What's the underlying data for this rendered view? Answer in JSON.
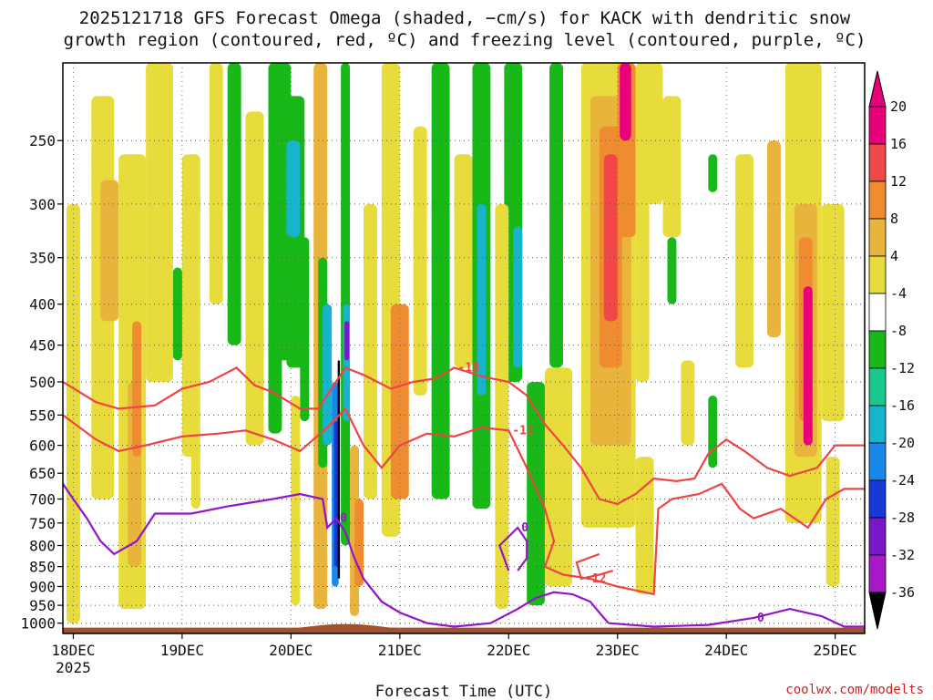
{
  "chart_data": {
    "type": "heatmap",
    "title_lines": [
      "2025121718 GFS Forecast Omega (shaded, −cm/s) for KACK with dendritic snow",
      "growth region (contoured, red, ºC) and freezing level (contoured, purple, ºC)"
    ],
    "xlabel": "Forecast Time (UTC)",
    "x_ticks": [
      "18DEC",
      "19DEC",
      "20DEC",
      "21DEC",
      "22DEC",
      "23DEC",
      "24DEC",
      "25DEC"
    ],
    "x_year_label": "2025",
    "x_range_hours": [
      -2.3,
      174.5
    ],
    "y_ticks": [
      250,
      300,
      350,
      400,
      450,
      500,
      550,
      600,
      650,
      700,
      750,
      800,
      850,
      900,
      950,
      1000
    ],
    "y_scale": "log",
    "y_range": [
      200,
      1030
    ],
    "grid": true,
    "colorbar": {
      "labels": [
        "20",
        "16",
        "12",
        "8",
        "4",
        "-4",
        "-8",
        "-12",
        "-16",
        "-20",
        "-24",
        "-28",
        "-32",
        "-36"
      ],
      "colors": [
        "#e8007a",
        "#f04848",
        "#f08c30",
        "#e8b43c",
        "#e8dc3c",
        "#ffffff",
        "#18b818",
        "#18c88c",
        "#18b4cc",
        "#1888e8",
        "#1838d8",
        "#7818c8",
        "#a818c8",
        "#a0a0a0"
      ],
      "top_cap_color": "#e8007a",
      "bottom_cap_color": "#000000"
    },
    "omega_colors": {
      "y4": "#e8dc3c",
      "y8": "#e8b43c",
      "o12": "#f08c30",
      "r16": "#f04848",
      "m20": "#e8007a",
      "g4": "#18b818",
      "g8": "#18c88c",
      "c12": "#18b4cc",
      "b16": "#1888e8",
      "b20": "#1838d8",
      "p24": "#7818c8",
      "bk": "#000000"
    },
    "omega_streaks": [
      {
        "t": [
          -1.5,
          1.5
        ],
        "p": [
          300,
          1000
        ],
        "c": "y4"
      },
      {
        "t": [
          4,
          9
        ],
        "p": [
          220,
          700
        ],
        "c": "y4"
      },
      {
        "t": [
          6,
          10
        ],
        "p": [
          280,
          420
        ],
        "c": "y8"
      },
      {
        "t": [
          10,
          16
        ],
        "p": [
          260,
          960
        ],
        "c": "y4"
      },
      {
        "t": [
          12,
          15
        ],
        "p": [
          500,
          850
        ],
        "c": "y8"
      },
      {
        "t": [
          13,
          15
        ],
        "p": [
          420,
          620
        ],
        "c": "o12"
      },
      {
        "t": [
          16,
          22
        ],
        "p": [
          200,
          500
        ],
        "c": "y4"
      },
      {
        "t": [
          24,
          28
        ],
        "p": [
          260,
          620
        ],
        "c": "y4"
      },
      {
        "t": [
          26,
          28
        ],
        "p": [
          600,
          720
        ],
        "c": "y4"
      },
      {
        "t": [
          22,
          24
        ],
        "p": [
          360,
          470
        ],
        "c": "g4"
      },
      {
        "t": [
          30,
          33
        ],
        "p": [
          200,
          400
        ],
        "c": "y4"
      },
      {
        "t": [
          34,
          37
        ],
        "p": [
          200,
          450
        ],
        "c": "g4"
      },
      {
        "t": [
          38,
          42
        ],
        "p": [
          230,
          600
        ],
        "c": "y4"
      },
      {
        "t": [
          43,
          48
        ],
        "p": [
          200,
          470
        ],
        "c": "g4"
      },
      {
        "t": [
          43,
          46
        ],
        "p": [
          420,
          580
        ],
        "c": "g4"
      },
      {
        "t": [
          47,
          51
        ],
        "p": [
          220,
          480
        ],
        "c": "g4"
      },
      {
        "t": [
          47,
          50
        ],
        "p": [
          250,
          330
        ],
        "c": "c12"
      },
      {
        "t": [
          50,
          52
        ],
        "p": [
          330,
          560
        ],
        "c": "g4"
      },
      {
        "t": [
          48,
          50
        ],
        "p": [
          520,
          950
        ],
        "c": "y4"
      },
      {
        "t": [
          53,
          56
        ],
        "p": [
          200,
          960
        ],
        "c": "y8"
      },
      {
        "t": [
          54,
          56
        ],
        "p": [
          350,
          640
        ],
        "c": "g4"
      },
      {
        "t": [
          55,
          57
        ],
        "p": [
          400,
          600
        ],
        "c": "c12"
      },
      {
        "t": [
          57,
          58.5
        ],
        "p": [
          500,
          900
        ],
        "c": "b16"
      },
      {
        "t": [
          57.5,
          58.5
        ],
        "p": [
          560,
          850
        ],
        "c": "b20"
      },
      {
        "t": [
          58.3,
          58.8
        ],
        "p": [
          470,
          880
        ],
        "c": "bk"
      },
      {
        "t": [
          59,
          61
        ],
        "p": [
          200,
          800
        ],
        "c": "g4"
      },
      {
        "t": [
          59.5,
          61
        ],
        "p": [
          400,
          560
        ],
        "c": "c12"
      },
      {
        "t": [
          59.8,
          60.8
        ],
        "p": [
          420,
          470
        ],
        "c": "p24"
      },
      {
        "t": [
          61,
          63
        ],
        "p": [
          600,
          980
        ],
        "c": "y8"
      },
      {
        "t": [
          62,
          64
        ],
        "p": [
          700,
          900
        ],
        "c": "o12"
      },
      {
        "t": [
          64,
          67
        ],
        "p": [
          300,
          700
        ],
        "c": "y4"
      },
      {
        "t": [
          68,
          72
        ],
        "p": [
          200,
          780
        ],
        "c": "y4"
      },
      {
        "t": [
          70,
          74
        ],
        "p": [
          400,
          700
        ],
        "c": "o12"
      },
      {
        "t": [
          75,
          78
        ],
        "p": [
          240,
          520
        ],
        "c": "y4"
      },
      {
        "t": [
          79,
          83
        ],
        "p": [
          200,
          700
        ],
        "c": "g4"
      },
      {
        "t": [
          84,
          88
        ],
        "p": [
          260,
          480
        ],
        "c": "y4"
      },
      {
        "t": [
          88,
          92
        ],
        "p": [
          200,
          720
        ],
        "c": "g4"
      },
      {
        "t": [
          89,
          91
        ],
        "p": [
          300,
          520
        ],
        "c": "c12"
      },
      {
        "t": [
          95,
          99
        ],
        "p": [
          200,
          500
        ],
        "c": "g4"
      },
      {
        "t": [
          97,
          99
        ],
        "p": [
          320,
          480
        ],
        "c": "c12"
      },
      {
        "t": [
          93,
          96
        ],
        "p": [
          300,
          960
        ],
        "c": "y4"
      },
      {
        "t": [
          100,
          104
        ],
        "p": [
          500,
          950
        ],
        "c": "g4"
      },
      {
        "t": [
          105,
          108
        ],
        "p": [
          200,
          480
        ],
        "c": "g4"
      },
      {
        "t": [
          104,
          110
        ],
        "p": [
          480,
          900
        ],
        "c": "y4"
      },
      {
        "t": [
          112,
          124
        ],
        "p": [
          200,
          760
        ],
        "c": "y4"
      },
      {
        "t": [
          114,
          123
        ],
        "p": [
          220,
          600
        ],
        "c": "y8"
      },
      {
        "t": [
          116,
          121
        ],
        "p": [
          240,
          480
        ],
        "c": "o12"
      },
      {
        "t": [
          117,
          120
        ],
        "p": [
          260,
          420
        ],
        "c": "r16"
      },
      {
        "t": [
          120,
          124
        ],
        "p": [
          200,
          330
        ],
        "c": "o12"
      },
      {
        "t": [
          120.5,
          123
        ],
        "p": [
          200,
          250
        ],
        "c": "m20"
      },
      {
        "t": [
          124,
          127
        ],
        "p": [
          200,
          500
        ],
        "c": "y4"
      },
      {
        "t": [
          126,
          130
        ],
        "p": [
          200,
          300
        ],
        "c": "y4"
      },
      {
        "t": [
          124,
          128
        ],
        "p": [
          620,
          920
        ],
        "c": "y4"
      },
      {
        "t": [
          130,
          134
        ],
        "p": [
          220,
          330
        ],
        "c": "y4"
      },
      {
        "t": [
          131,
          133
        ],
        "p": [
          330,
          400
        ],
        "c": "g4"
      },
      {
        "t": [
          134,
          137
        ],
        "p": [
          470,
          600
        ],
        "c": "y4"
      },
      {
        "t": [
          140,
          142
        ],
        "p": [
          520,
          640
        ],
        "c": "g4"
      },
      {
        "t": [
          140,
          142
        ],
        "p": [
          260,
          290
        ],
        "c": "g4"
      },
      {
        "t": [
          146,
          150
        ],
        "p": [
          260,
          480
        ],
        "c": "y4"
      },
      {
        "t": [
          153,
          156
        ],
        "p": [
          250,
          440
        ],
        "c": "y8"
      },
      {
        "t": [
          157,
          165
        ],
        "p": [
          200,
          750
        ],
        "c": "y4"
      },
      {
        "t": [
          159,
          164
        ],
        "p": [
          300,
          620
        ],
        "c": "y8"
      },
      {
        "t": [
          160,
          163
        ],
        "p": [
          330,
          560
        ],
        "c": "o12"
      },
      {
        "t": [
          161,
          163
        ],
        "p": [
          380,
          600
        ],
        "c": "m20"
      },
      {
        "t": [
          165,
          170
        ],
        "p": [
          300,
          560
        ],
        "c": "y4"
      },
      {
        "t": [
          166,
          169
        ],
        "p": [
          620,
          900
        ],
        "c": "y4"
      }
    ],
    "dgz_contours": [
      {
        "label": "-18",
        "points": [
          [
            -2.3,
            500
          ],
          [
            5,
            530
          ],
          [
            10,
            540
          ],
          [
            18,
            535
          ],
          [
            24,
            510
          ],
          [
            30,
            500
          ],
          [
            36,
            480
          ],
          [
            40,
            505
          ],
          [
            44,
            515
          ],
          [
            50,
            540
          ],
          [
            54,
            540
          ],
          [
            60,
            480
          ],
          [
            64,
            490
          ],
          [
            70,
            510
          ],
          [
            75,
            500
          ],
          [
            80,
            495
          ],
          [
            84,
            480
          ],
          [
            90,
            492
          ],
          [
            96,
            500
          ],
          [
            100,
            520
          ],
          [
            104,
            565
          ],
          [
            108,
            600
          ],
          [
            112,
            640
          ],
          [
            116,
            700
          ],
          [
            120,
            710
          ],
          [
            124,
            690
          ],
          [
            128,
            660
          ],
          [
            133,
            665
          ],
          [
            137,
            660
          ],
          [
            140,
            615
          ],
          [
            144,
            590
          ],
          [
            148,
            610
          ],
          [
            153,
            640
          ],
          [
            158,
            655
          ],
          [
            164,
            640
          ],
          [
            168,
            600
          ],
          [
            174.5,
            600
          ]
        ]
      },
      {
        "label": "-12",
        "points": [
          [
            -2.3,
            550
          ],
          [
            5,
            590
          ],
          [
            10,
            610
          ],
          [
            16,
            600
          ],
          [
            24,
            585
          ],
          [
            32,
            580
          ],
          [
            38,
            575
          ],
          [
            44,
            590
          ],
          [
            50,
            610
          ],
          [
            56,
            570
          ],
          [
            60,
            540
          ],
          [
            64,
            600
          ],
          [
            68,
            640
          ],
          [
            72,
            600
          ],
          [
            78,
            580
          ],
          [
            84,
            585
          ],
          [
            90,
            570
          ],
          [
            96,
            575
          ],
          [
            100,
            640
          ],
          [
            104,
            720
          ],
          [
            106,
            790
          ],
          [
            104,
            850
          ],
          [
            108,
            870
          ],
          [
            114,
            880
          ],
          [
            120,
            900
          ],
          [
            124,
            910
          ],
          [
            128,
            920
          ],
          [
            129,
            720
          ],
          [
            132,
            700
          ],
          [
            138,
            690
          ],
          [
            143,
            670
          ],
          [
            147,
            720
          ],
          [
            150,
            740
          ],
          [
            156,
            720
          ],
          [
            162,
            760
          ],
          [
            166,
            700
          ],
          [
            170,
            680
          ],
          [
            174.5,
            680
          ]
        ]
      },
      {
        "label": "-12",
        "points": [
          [
            116,
            820
          ],
          [
            111,
            840
          ],
          [
            112,
            880
          ],
          [
            116,
            870
          ],
          [
            119,
            860
          ]
        ]
      }
    ],
    "freezing_contours": [
      {
        "label": "0",
        "points": [
          [
            -2.3,
            670
          ],
          [
            0,
            700
          ],
          [
            3,
            740
          ],
          [
            6,
            790
          ],
          [
            9,
            820
          ],
          [
            14,
            790
          ],
          [
            18,
            730
          ],
          [
            26,
            730
          ],
          [
            34,
            715
          ],
          [
            44,
            700
          ],
          [
            50,
            690
          ],
          [
            55,
            700
          ],
          [
            56,
            760
          ],
          [
            58,
            740
          ],
          [
            60,
            770
          ],
          [
            62,
            830
          ],
          [
            64,
            880
          ],
          [
            68,
            940
          ],
          [
            72,
            970
          ],
          [
            78,
            1000
          ],
          [
            84,
            1010
          ],
          [
            92,
            1000
          ],
          [
            98,
            960
          ],
          [
            102,
            930
          ],
          [
            106,
            915
          ],
          [
            110,
            920
          ],
          [
            114,
            940
          ],
          [
            116,
            970
          ],
          [
            118,
            1000
          ]
        ]
      },
      {
        "label": "0",
        "points": [
          [
            118,
            1000
          ],
          [
            128,
            1010
          ],
          [
            140,
            1005
          ],
          [
            150,
            985
          ],
          [
            158,
            960
          ],
          [
            165,
            980
          ],
          [
            170,
            1010
          ],
          [
            174.5,
            1010
          ]
        ]
      },
      {
        "label": "0",
        "points": [
          [
            96,
            860
          ],
          [
            94,
            800
          ],
          [
            98,
            760
          ],
          [
            100,
            790
          ],
          [
            100,
            830
          ],
          [
            98,
            860
          ]
        ]
      }
    ],
    "credit": "coolwx.com/modelts"
  }
}
